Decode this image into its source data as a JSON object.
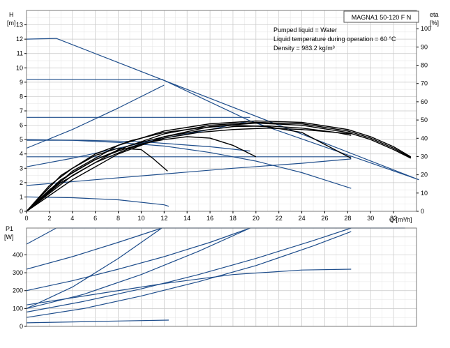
{
  "chart_data": [
    {
      "type": "line",
      "title": "MAGNA1 50-120 F N",
      "ylabel": "H",
      "yunit": "[m]",
      "y2label": "eta",
      "y2unit": "[%]",
      "xlabel": "Q [m³/h]",
      "xlim": [
        0,
        34
      ],
      "ylim": [
        0,
        14
      ],
      "y2lim": [
        0,
        110
      ],
      "xticks": [
        0,
        2,
        4,
        6,
        8,
        10,
        12,
        14,
        16,
        18,
        20,
        22,
        24,
        26,
        28,
        30,
        32
      ],
      "yticks": [
        0,
        1,
        2,
        3,
        4,
        5,
        6,
        7,
        8,
        9,
        10,
        11,
        12,
        13
      ],
      "y2ticks": [
        0,
        10,
        20,
        30,
        40,
        50,
        60,
        70,
        80,
        90,
        100
      ],
      "grid": true,
      "annotations": [
        "Pumped liquid = Water",
        "Liquid temperature during operation = 60 °C",
        "Density = 983.2 kg/m³"
      ],
      "series": [
        {
          "color": "#1f4e8c",
          "x": [
            0,
            2.6,
            34.2
          ],
          "y": [
            12,
            12.05,
            2.2
          ]
        },
        {
          "color": "#1f4e8c",
          "x": [
            0,
            11.8,
            19.5,
            34.2
          ],
          "y": [
            9.2,
            9.2,
            6.3,
            2.2
          ]
        },
        {
          "color": "#1f4e8c",
          "x": [
            0,
            19.5
          ],
          "y": [
            6.55,
            6.55
          ]
        },
        {
          "color": "#1f4e8c",
          "x": [
            0,
            5,
            10,
            16,
            19.5
          ],
          "y": [
            4.95,
            4.95,
            4.85,
            4.5,
            4.2
          ]
        },
        {
          "color": "#1f4e8c",
          "x": [
            0,
            28.3
          ],
          "y": [
            3.8,
            3.8
          ]
        },
        {
          "color": "#1f4e8c",
          "x": [
            0,
            6,
            12,
            18,
            24,
            28.3
          ],
          "y": [
            1.8,
            2.2,
            2.6,
            3.0,
            3.35,
            3.65
          ]
        },
        {
          "color": "#1f4e8c",
          "x": [
            0,
            4,
            8,
            12,
            16,
            20,
            24,
            28.3
          ],
          "y": [
            5.0,
            4.95,
            4.8,
            4.55,
            4.1,
            3.5,
            2.7,
            1.6
          ]
        },
        {
          "color": "#1f4e8c",
          "x": [
            0,
            4,
            8,
            12
          ],
          "y": [
            4.4,
            5.7,
            7.2,
            8.8
          ]
        },
        {
          "color": "#1f4e8c",
          "x": [
            0,
            4,
            8,
            12,
            16,
            19.5
          ],
          "y": [
            3.1,
            3.7,
            4.4,
            5.1,
            5.7,
            6.3
          ]
        },
        {
          "color": "#1f4e8c",
          "x": [
            0,
            4,
            8,
            12,
            12.4
          ],
          "y": [
            1.0,
            0.95,
            0.8,
            0.45,
            0.35
          ]
        },
        {
          "color": "#000000",
          "x": [
            0,
            2,
            4,
            6,
            8,
            10,
            11,
            12.3
          ],
          "y": [
            0,
            1.8,
            3.0,
            3.9,
            4.4,
            4.3,
            3.7,
            2.8
          ]
        },
        {
          "color": "#000000",
          "x": [
            0,
            2,
            4,
            6,
            8,
            10,
            12,
            14,
            16,
            18,
            20
          ],
          "y": [
            0,
            1.5,
            2.7,
            3.6,
            4.2,
            4.7,
            5.0,
            5.2,
            5.1,
            4.6,
            3.8
          ]
        },
        {
          "color": "#000000",
          "x": [
            0,
            3,
            6,
            9,
            12,
            15,
            18,
            21,
            24,
            28.3
          ],
          "y": [
            0,
            2.5,
            4.0,
            4.9,
            5.5,
            5.8,
            6.0,
            5.9,
            5.5,
            3.7
          ]
        },
        {
          "color": "#000000",
          "x": [
            0,
            3,
            6,
            9,
            12,
            15,
            18,
            21,
            24,
            27,
            28.3
          ],
          "y": [
            0,
            2.2,
            3.6,
            4.6,
            5.2,
            5.6,
            5.9,
            5.95,
            5.8,
            5.5,
            5.3
          ]
        },
        {
          "color": "#000000",
          "x": [
            0,
            3,
            6,
            9,
            12,
            15,
            18,
            21,
            24,
            27,
            28.3
          ],
          "y": [
            0,
            2.0,
            3.4,
            4.4,
            5.1,
            5.5,
            5.7,
            5.8,
            5.7,
            5.5,
            5.4
          ]
        },
        {
          "color": "#000000",
          "x": [
            0,
            4,
            8,
            12,
            16,
            20,
            24,
            28,
            30,
            32,
            33.5
          ],
          "y": [
            0,
            2.8,
            4.6,
            5.6,
            6.1,
            6.3,
            6.2,
            5.7,
            5.2,
            4.5,
            3.8
          ]
        },
        {
          "color": "#000000",
          "x": [
            0,
            4,
            8,
            12,
            16,
            20,
            24,
            28,
            30,
            32,
            33.5
          ],
          "y": [
            0,
            2.5,
            4.3,
            5.4,
            6.0,
            6.2,
            6.1,
            5.6,
            5.1,
            4.4,
            3.75
          ]
        },
        {
          "color": "#000000",
          "x": [
            0,
            4,
            8,
            12,
            16,
            20,
            24,
            28,
            30,
            32,
            33.5
          ],
          "y": [
            0,
            2.2,
            4.0,
            5.2,
            5.9,
            6.15,
            6.0,
            5.5,
            5.0,
            4.3,
            3.7
          ]
        }
      ]
    },
    {
      "type": "line",
      "ylabel": "P1",
      "yunit": "[W]",
      "xlim": [
        0,
        34
      ],
      "ylim": [
        0,
        550
      ],
      "yticks": [
        0,
        100,
        200,
        300,
        400
      ],
      "grid": true,
      "series": [
        {
          "color": "#1f4e8c",
          "x": [
            0,
            2.6,
            33
          ],
          "y": [
            460,
            550,
            550
          ]
        },
        {
          "color": "#1f4e8c",
          "x": [
            0,
            4,
            8,
            11.8
          ],
          "y": [
            320,
            390,
            470,
            550
          ]
        },
        {
          "color": "#1f4e8c",
          "x": [
            0,
            4,
            8,
            12,
            16,
            19.5
          ],
          "y": [
            200,
            255,
            320,
            390,
            470,
            550
          ]
        },
        {
          "color": "#1f4e8c",
          "x": [
            0,
            5,
            10,
            15,
            20,
            25,
            28.3
          ],
          "y": [
            80,
            140,
            210,
            290,
            380,
            480,
            550
          ]
        },
        {
          "color": "#1f4e8c",
          "x": [
            0,
            5,
            10,
            15,
            20,
            25,
            28.3
          ],
          "y": [
            50,
            100,
            170,
            250,
            340,
            450,
            530
          ]
        },
        {
          "color": "#1f4e8c",
          "x": [
            0,
            4,
            8,
            11.8
          ],
          "y": [
            100,
            220,
            380,
            550
          ]
        },
        {
          "color": "#1f4e8c",
          "x": [
            0,
            5,
            10,
            15,
            19.5
          ],
          "y": [
            100,
            180,
            290,
            420,
            550
          ]
        },
        {
          "color": "#1f4e8c",
          "x": [
            0,
            6,
            12,
            18,
            24,
            28.3
          ],
          "y": [
            120,
            180,
            240,
            290,
            315,
            320
          ]
        },
        {
          "color": "#1f4e8c",
          "x": [
            0,
            4,
            8,
            12.4
          ],
          "y": [
            20,
            25,
            30,
            35
          ]
        }
      ]
    }
  ]
}
